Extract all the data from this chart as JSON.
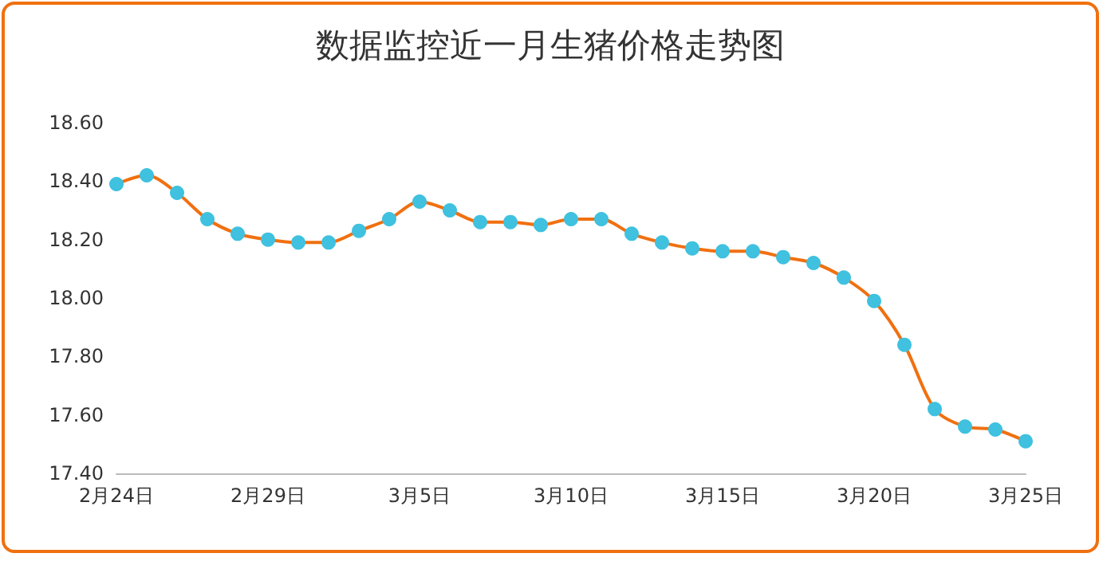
{
  "chart_data": {
    "type": "line",
    "title": "数据监控近一月生猪价格走势图",
    "categories": [
      "2月24日",
      null,
      null,
      null,
      null,
      "2月29日",
      null,
      null,
      null,
      null,
      "3月5日",
      null,
      null,
      null,
      null,
      "3月10日",
      null,
      null,
      null,
      null,
      "3月15日",
      null,
      null,
      null,
      null,
      "3月20日",
      null,
      null,
      null,
      null,
      "3月25日"
    ],
    "series": [
      {
        "color": "#f07010",
        "values": [
          18.39,
          18.42,
          18.36,
          18.27,
          18.22,
          18.2,
          18.19,
          18.19,
          18.23,
          18.27,
          18.33,
          18.3,
          18.26,
          18.26,
          18.25,
          18.27,
          18.27,
          18.22,
          18.19,
          18.17,
          18.16,
          18.16,
          18.14,
          18.12,
          18.07,
          17.99,
          17.84,
          17.62,
          17.56,
          17.55,
          17.51
        ]
      }
    ],
    "ylim": [
      17.4,
      18.6
    ],
    "yticks": [
      {
        "value": 17.4,
        "label": "17.40"
      },
      {
        "value": 17.6,
        "label": "17.60"
      },
      {
        "value": 17.8,
        "label": "17.80"
      },
      {
        "value": 18.0,
        "label": "18.00"
      },
      {
        "value": 18.2,
        "label": "18.20"
      },
      {
        "value": 18.4,
        "label": "18.40"
      },
      {
        "value": 18.6,
        "label": "18.60"
      }
    ],
    "grid": false,
    "marker": "circle",
    "line_style": "solid"
  }
}
